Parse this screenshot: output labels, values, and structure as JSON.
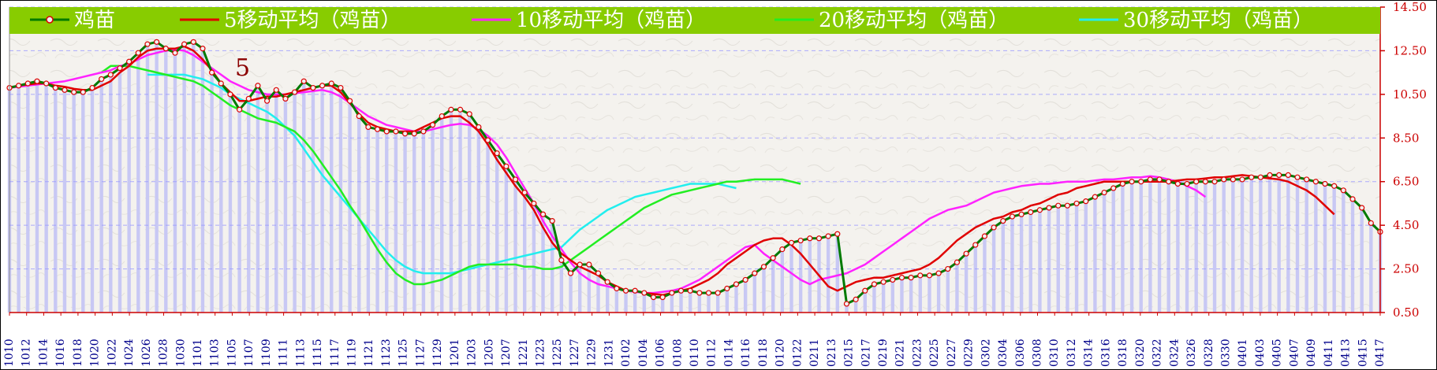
{
  "chart_data": {
    "type": "line",
    "title": "",
    "xlabel": "",
    "ylabel": "",
    "ylim": [
      0.5,
      14.5
    ],
    "yticks": [
      "0.50",
      "2.50",
      "4.50",
      "6.50",
      "8.50",
      "10.50",
      "12.50",
      "14.50"
    ],
    "grid": true,
    "legend_position": "top",
    "annotation": "5",
    "colors": {
      "price": "#007a00",
      "ma5": "#e00000",
      "ma10": "#ff22ff",
      "ma20": "#22ee22",
      "ma30": "#22eeee",
      "legend_bg": "#88cc00",
      "axis_text": "#cc0000",
      "date_text": "#00008b",
      "bar": "#c8c8f4",
      "grid": "#9999ff",
      "marker_fill": "#f0f0f0",
      "marker_edge": "#dd0000"
    },
    "legend": [
      "鸡苗",
      "5移动平均（鸡苗）",
      "10移动平均（鸡苗）",
      "20移动平均（鸡苗）",
      "30移动平均（鸡苗）"
    ],
    "date_labels": [
      "1010",
      "1012",
      "1014",
      "1016",
      "1018",
      "1020",
      "1022",
      "1024",
      "1026",
      "1028",
      "1030",
      "1101",
      "1103",
      "1105",
      "1107",
      "1109",
      "1111",
      "1113",
      "1115",
      "1117",
      "1119",
      "1121",
      "1123",
      "1125",
      "1127",
      "1129",
      "1201",
      "1203",
      "1205",
      "1207",
      "1221",
      "1223",
      "1225",
      "1227",
      "1229",
      "1231",
      "0102",
      "0104",
      "0106",
      "0108",
      "0110",
      "0112",
      "0114",
      "0116",
      "0118",
      "0120",
      "0122",
      "0211",
      "0213",
      "0215",
      "0217",
      "0219",
      "0221",
      "0223",
      "0225",
      "0227",
      "0229",
      "0302",
      "0304",
      "0306",
      "0308",
      "0310",
      "0312",
      "0314",
      "0316",
      "0318",
      "0320",
      "0322",
      "0324",
      "0326",
      "0328",
      "0330",
      "0401",
      "0403",
      "0405",
      "0407",
      "0409",
      "0411",
      "0413",
      "0415",
      "0417"
    ],
    "series": [
      {
        "name": "鸡苗",
        "key": "price",
        "x_start": 0,
        "values": [
          10.8,
          10.9,
          11.0,
          11.1,
          11.0,
          10.8,
          10.7,
          10.6,
          10.6,
          10.8,
          11.2,
          11.4,
          11.7,
          12.0,
          12.4,
          12.8,
          12.9,
          12.6,
          12.4,
          12.8,
          12.9,
          12.6,
          11.5,
          11.0,
          10.5,
          9.8,
          10.3,
          10.9,
          10.2,
          10.7,
          10.3,
          10.6,
          11.1,
          10.8,
          10.9,
          11.0,
          10.8,
          10.2,
          9.5,
          9.0,
          8.9,
          8.8,
          8.8,
          8.7,
          8.7,
          8.8,
          9.1,
          9.5,
          9.8,
          9.8,
          9.6,
          9.0,
          8.4,
          7.8,
          7.2,
          6.6,
          6.0,
          5.5,
          5.0,
          4.7,
          2.9,
          2.3,
          2.7,
          2.7,
          2.3,
          1.9,
          1.6,
          1.5,
          1.5,
          1.4,
          1.2,
          1.2,
          1.4,
          1.5,
          1.5,
          1.4,
          1.4,
          1.4,
          1.6,
          1.8,
          2.0,
          2.3,
          2.6,
          3.0,
          3.4,
          3.7,
          3.8,
          3.9,
          3.9,
          4.0,
          4.1,
          0.9,
          1.1,
          1.5,
          1.8,
          1.9,
          2.0,
          2.1,
          2.1,
          2.2,
          2.2,
          2.3,
          2.5,
          2.8,
          3.2,
          3.6,
          4.0,
          4.4,
          4.7,
          4.9,
          5.0,
          5.1,
          5.2,
          5.3,
          5.4,
          5.4,
          5.5,
          5.6,
          5.8,
          6.0,
          6.2,
          6.4,
          6.5,
          6.5,
          6.6,
          6.6,
          6.5,
          6.4,
          6.4,
          6.5,
          6.5,
          6.5,
          6.6,
          6.6,
          6.6,
          6.7,
          6.7,
          6.8,
          6.8,
          6.8,
          6.7,
          6.6,
          6.5,
          6.4,
          6.3,
          6.1,
          5.7,
          5.3,
          4.6,
          4.2
        ]
      },
      {
        "name": "5移动平均（鸡苗）",
        "key": "ma5",
        "x_start": 0,
        "values": [
          10.8,
          10.9,
          10.95,
          11.0,
          11.0,
          10.9,
          10.85,
          10.75,
          10.7,
          10.7,
          10.9,
          11.1,
          11.5,
          11.8,
          12.2,
          12.5,
          12.6,
          12.6,
          12.6,
          12.7,
          12.5,
          12.1,
          11.6,
          11.0,
          10.6,
          10.2,
          10.2,
          10.3,
          10.4,
          10.4,
          10.5,
          10.6,
          10.7,
          10.8,
          10.9,
          10.9,
          10.6,
          10.1,
          9.6,
          9.2,
          9.0,
          8.9,
          8.8,
          8.8,
          8.8,
          9.0,
          9.2,
          9.4,
          9.5,
          9.5,
          9.2,
          8.8,
          8.2,
          7.5,
          6.9,
          6.3,
          5.8,
          5.2,
          4.4,
          3.7,
          3.2,
          2.9,
          2.6,
          2.4,
          2.2,
          1.9,
          1.7,
          1.5,
          1.5,
          1.4,
          1.35,
          1.3,
          1.4,
          1.5,
          1.6,
          1.8,
          2.0,
          2.3,
          2.7,
          3.0,
          3.3,
          3.6,
          3.8,
          3.9,
          3.9,
          3.6,
          3.2,
          2.7,
          2.2,
          1.7,
          1.5,
          1.7,
          1.9,
          2.0,
          2.1,
          2.1,
          2.2,
          2.3,
          2.4,
          2.5,
          2.7,
          3.0,
          3.4,
          3.8,
          4.1,
          4.4,
          4.6,
          4.8,
          4.9,
          5.1,
          5.2,
          5.4,
          5.5,
          5.7,
          5.9,
          6.0,
          6.2,
          6.3,
          6.4,
          6.5,
          6.5,
          6.5,
          6.5,
          6.5,
          6.5,
          6.5,
          6.5,
          6.55,
          6.6,
          6.6,
          6.65,
          6.7,
          6.7,
          6.75,
          6.8,
          6.75,
          6.7,
          6.65,
          6.6,
          6.5,
          6.3,
          6.1,
          5.8,
          5.4,
          5.0
        ]
      },
      {
        "name": "10移动平均（鸡苗）",
        "key": "ma10",
        "x_start": 0,
        "values": [
          10.8,
          10.85,
          10.9,
          10.95,
          11.0,
          11.05,
          11.1,
          11.2,
          11.3,
          11.4,
          11.5,
          11.6,
          11.8,
          11.9,
          12.1,
          12.3,
          12.4,
          12.5,
          12.55,
          12.5,
          12.3,
          12.0,
          11.7,
          11.4,
          11.1,
          10.9,
          10.7,
          10.6,
          10.5,
          10.5,
          10.5,
          10.55,
          10.6,
          10.65,
          10.7,
          10.6,
          10.4,
          10.1,
          9.8,
          9.5,
          9.3,
          9.1,
          9.0,
          8.9,
          8.8,
          8.8,
          8.9,
          9.0,
          9.1,
          9.15,
          9.1,
          8.9,
          8.6,
          8.2,
          7.6,
          6.9,
          6.2,
          5.5,
          4.7,
          4.0,
          3.4,
          2.8,
          2.3,
          2.0,
          1.8,
          1.7,
          1.6,
          1.5,
          1.45,
          1.4,
          1.4,
          1.45,
          1.5,
          1.6,
          1.8,
          2.0,
          2.3,
          2.6,
          2.9,
          3.2,
          3.5,
          3.6,
          3.2,
          2.9,
          2.6,
          2.3,
          2.0,
          1.8,
          2.0,
          2.1,
          2.2,
          2.3,
          2.5,
          2.7,
          3.0,
          3.3,
          3.6,
          3.9,
          4.2,
          4.5,
          4.8,
          5.0,
          5.2,
          5.3,
          5.4,
          5.6,
          5.8,
          6.0,
          6.1,
          6.2,
          6.3,
          6.35,
          6.4,
          6.4,
          6.45,
          6.5,
          6.5,
          6.5,
          6.55,
          6.6,
          6.6,
          6.65,
          6.7,
          6.7,
          6.75,
          6.7,
          6.6,
          6.5,
          6.3,
          6.1,
          5.8
        ]
      },
      {
        "name": "20移动平均（鸡苗）",
        "key": "ma20",
        "x_start": 10,
        "values": [
          11.5,
          11.8,
          11.8,
          11.8,
          11.7,
          11.6,
          11.5,
          11.4,
          11.3,
          11.2,
          11.1,
          10.9,
          10.6,
          10.3,
          10.0,
          9.8,
          9.6,
          9.4,
          9.3,
          9.2,
          9.0,
          8.8,
          8.4,
          7.9,
          7.3,
          6.7,
          6.1,
          5.4,
          4.8,
          4.1,
          3.4,
          2.8,
          2.3,
          2.0,
          1.8,
          1.8,
          1.9,
          2.0,
          2.2,
          2.4,
          2.6,
          2.7,
          2.7,
          2.7,
          2.7,
          2.7,
          2.6,
          2.6,
          2.5,
          2.5,
          2.6,
          2.9,
          3.2,
          3.5,
          3.8,
          4.1,
          4.4,
          4.7,
          5.0,
          5.3,
          5.5,
          5.7,
          5.9,
          6.0,
          6.1,
          6.2,
          6.3,
          6.4,
          6.5,
          6.5,
          6.55,
          6.6,
          6.6,
          6.6,
          6.6,
          6.5,
          6.4
        ]
      },
      {
        "name": "30移动平均（鸡苗）",
        "key": "ma30",
        "x_start": 15,
        "values": [
          11.4,
          11.4,
          11.4,
          11.4,
          11.4,
          11.3,
          11.2,
          11.0,
          10.8,
          10.5,
          10.3,
          10.1,
          9.9,
          9.7,
          9.4,
          9.0,
          8.6,
          8.0,
          7.4,
          6.8,
          6.3,
          5.8,
          5.3,
          4.8,
          4.3,
          3.8,
          3.3,
          2.9,
          2.6,
          2.4,
          2.3,
          2.3,
          2.3,
          2.3,
          2.4,
          2.5,
          2.6,
          2.7,
          2.8,
          2.9,
          3.0,
          3.1,
          3.2,
          3.3,
          3.4,
          3.5,
          3.9,
          4.3,
          4.6,
          4.9,
          5.2,
          5.4,
          5.6,
          5.8,
          5.9,
          6.0,
          6.1,
          6.2,
          6.3,
          6.4,
          6.4,
          6.4,
          6.4,
          6.3,
          6.2
        ]
      }
    ]
  }
}
